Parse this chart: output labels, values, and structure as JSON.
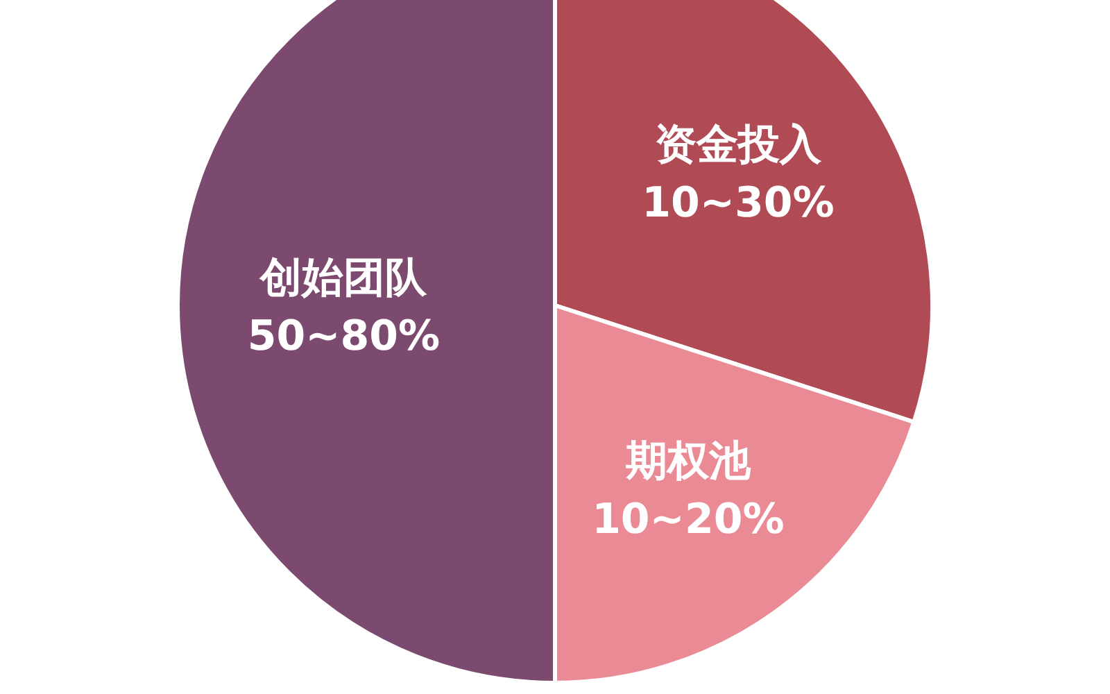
{
  "chart_data": {
    "type": "pie",
    "categories": [
      "资金投入",
      "期权池",
      "创始团队"
    ],
    "values": [
      30,
      20,
      50
    ],
    "value_labels": [
      "10~30%",
      "10~20%",
      "50~80%"
    ],
    "colors": [
      "#b04a55",
      "#e98a95",
      "#7b4a6e"
    ]
  }
}
